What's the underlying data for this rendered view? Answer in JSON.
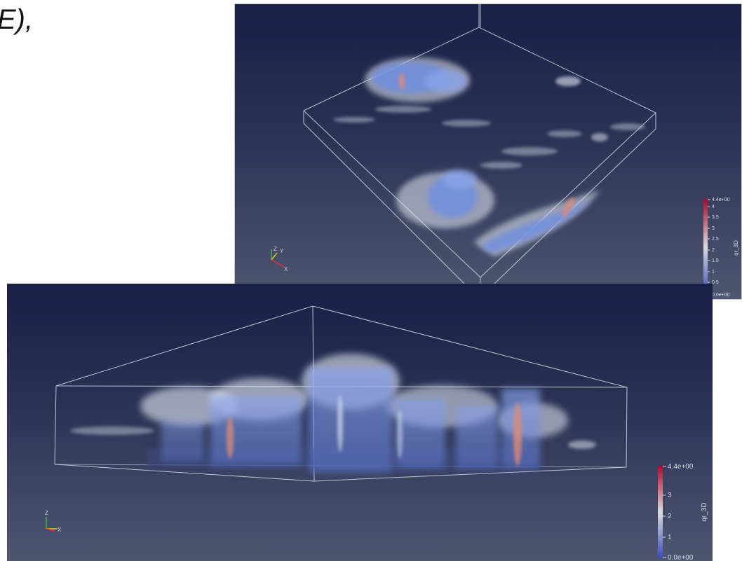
{
  "page": {
    "text_fragment": "E),"
  },
  "top_view": {
    "colorbar": {
      "title": "qr_3D",
      "max_label": "4.4e+00",
      "min_label": "0.0e+00",
      "tick_labels": [
        "4",
        "3.5",
        "3",
        "2.5",
        "2",
        "1.5",
        "1",
        "0.5"
      ]
    },
    "axes": {
      "z": "Z",
      "y": "Y",
      "x": "X"
    }
  },
  "side_view": {
    "colorbar": {
      "title": "qr_3D",
      "max_label": "4.4e+00",
      "min_label": "0.0e+00",
      "tick_labels": [
        "3",
        "2",
        "1"
      ]
    },
    "axes": {
      "z": "Z",
      "x": "X"
    }
  },
  "colors": {
    "bg_top": "#1a1f45",
    "bg_bottom": "#4f5672",
    "cloud_blue": "#6f8fe0",
    "cloud_white": "#e8ebf5",
    "core_red": "#e08a78"
  }
}
